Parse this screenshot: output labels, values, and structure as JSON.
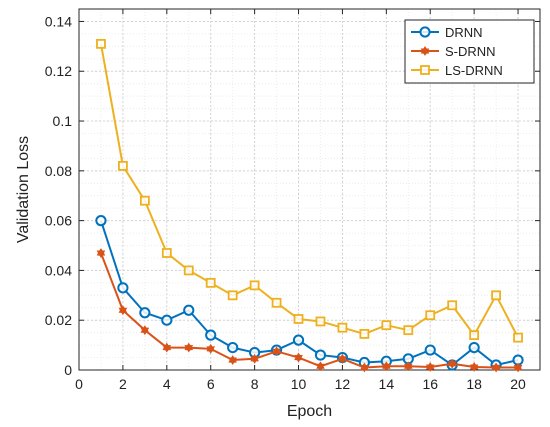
{
  "chart_data": {
    "type": "line",
    "title": "",
    "xlabel": "Epoch",
    "ylabel": "Validation Loss",
    "xlim": [
      0,
      21
    ],
    "ylim": [
      0,
      0.145
    ],
    "xticks": [
      0,
      2,
      4,
      6,
      8,
      10,
      12,
      14,
      16,
      18,
      20
    ],
    "yticks": [
      0,
      0.02,
      0.04,
      0.06,
      0.08,
      0.1,
      0.12,
      0.14
    ],
    "ytick_labels": [
      "0",
      "0.02",
      "0.04",
      "0.06",
      "0.08",
      "0.1",
      "0.12",
      "0.14"
    ],
    "grid": true,
    "legend_position": "top-right",
    "x": [
      1,
      2,
      3,
      4,
      5,
      6,
      7,
      8,
      9,
      10,
      11,
      12,
      13,
      14,
      15,
      16,
      17,
      18,
      19,
      20
    ],
    "series": [
      {
        "name": "DRNN",
        "color": "#0072bd",
        "marker": "circle",
        "values": [
          0.06,
          0.033,
          0.023,
          0.02,
          0.024,
          0.014,
          0.009,
          0.007,
          0.008,
          0.012,
          0.006,
          0.005,
          0.003,
          0.0035,
          0.0045,
          0.008,
          0.002,
          0.009,
          0.002,
          0.004
        ]
      },
      {
        "name": "S-DRNN",
        "color": "#d95319",
        "marker": "star",
        "values": [
          0.047,
          0.024,
          0.016,
          0.009,
          0.009,
          0.0085,
          0.004,
          0.0045,
          0.0075,
          0.005,
          0.0015,
          0.0045,
          0.001,
          0.0015,
          0.0015,
          0.0012,
          0.0025,
          0.0012,
          0.001,
          0.001
        ]
      },
      {
        "name": "LS-DRNN",
        "color": "#edb120",
        "marker": "square",
        "values": [
          0.131,
          0.082,
          0.068,
          0.047,
          0.04,
          0.035,
          0.03,
          0.034,
          0.027,
          0.0205,
          0.0195,
          0.017,
          0.0145,
          0.018,
          0.016,
          0.022,
          0.026,
          0.014,
          0.03,
          0.013
        ]
      }
    ]
  }
}
